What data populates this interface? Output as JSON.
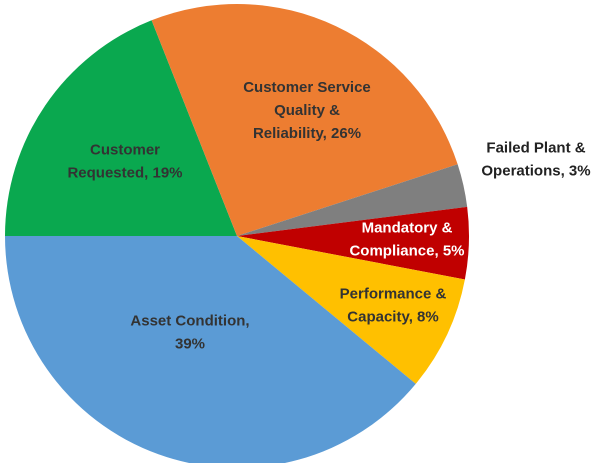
{
  "chart_data": {
    "type": "pie",
    "values": [
      19,
      26,
      3,
      5,
      8,
      39
    ],
    "value_labels": [
      [
        "Customer",
        "Requested, 19%"
      ],
      [
        "Customer Service",
        "Quality &",
        "Reliability, 26%"
      ],
      [
        "Failed Plant &",
        "Operations, 3%"
      ],
      [
        "Mandatory &",
        "Compliance, 5%"
      ],
      [
        "Performance &",
        "Capacity, 8%"
      ],
      [
        "Asset Condition,",
        "39%"
      ]
    ],
    "colors": [
      "#0aa84f",
      "#ed7d31",
      "#7f7f7f",
      "#c00000",
      "#ffc000",
      "#5b9bd5"
    ]
  }
}
